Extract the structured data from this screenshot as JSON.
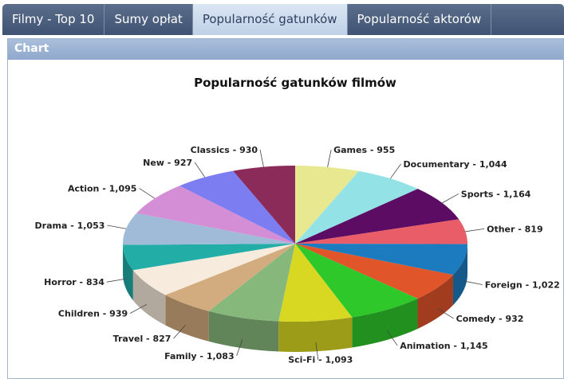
{
  "tabs": [
    {
      "label": "Filmy - Top 10"
    },
    {
      "label": "Sumy opłat"
    },
    {
      "label": "Popularność gatunków"
    },
    {
      "label": "Popularność aktorów"
    }
  ],
  "active_tab": 2,
  "panel": {
    "title": "Chart"
  },
  "chart_data": {
    "type": "pie",
    "title": "Popularność gatunków filmów",
    "slices": [
      {
        "label": "Games",
        "value": 955,
        "display": "Games - 955",
        "color": "#e8e891"
      },
      {
        "label": "Documentary",
        "value": 1044,
        "display": "Documentary - 1,044",
        "color": "#93e3e6"
      },
      {
        "label": "Sports",
        "value": 1164,
        "display": "Sports - 1,164",
        "color": "#5c0c62"
      },
      {
        "label": "Other",
        "value": 819,
        "display": "Other - 819",
        "color": "#e85d68"
      },
      {
        "label": "Foreign",
        "value": 1022,
        "display": "Foreign - 1,022",
        "color": "#1c7bbf"
      },
      {
        "label": "Comedy",
        "value": 932,
        "display": "Comedy - 932",
        "color": "#e0552a"
      },
      {
        "label": "Animation",
        "value": 1145,
        "display": "Animation - 1,145",
        "color": "#2ec82a"
      },
      {
        "label": "Sci-Fi",
        "value": 1093,
        "display": "Sci-Fi - 1,093",
        "color": "#d8d822"
      },
      {
        "label": "Family",
        "value": 1083,
        "display": "Family - 1,083",
        "color": "#87b87b"
      },
      {
        "label": "Travel",
        "value": 827,
        "display": "Travel - 827",
        "color": "#d2ab7e"
      },
      {
        "label": "Children",
        "value": 939,
        "display": "Children - 939",
        "color": "#f6ebdc"
      },
      {
        "label": "Horror",
        "value": 834,
        "display": "Horror - 834",
        "color": "#22aea6"
      },
      {
        "label": "Drama",
        "value": 1053,
        "display": "Drama - 1,053",
        "color": "#9fbbd8"
      },
      {
        "label": "Action",
        "value": 1095,
        "display": "Action - 1,095",
        "color": "#d48ed6"
      },
      {
        "label": "New",
        "value": 927,
        "display": "New - 927",
        "color": "#7b7df0"
      },
      {
        "label": "Classics",
        "value": 930,
        "display": "Classics - 930",
        "color": "#8b2b5a"
      }
    ]
  }
}
